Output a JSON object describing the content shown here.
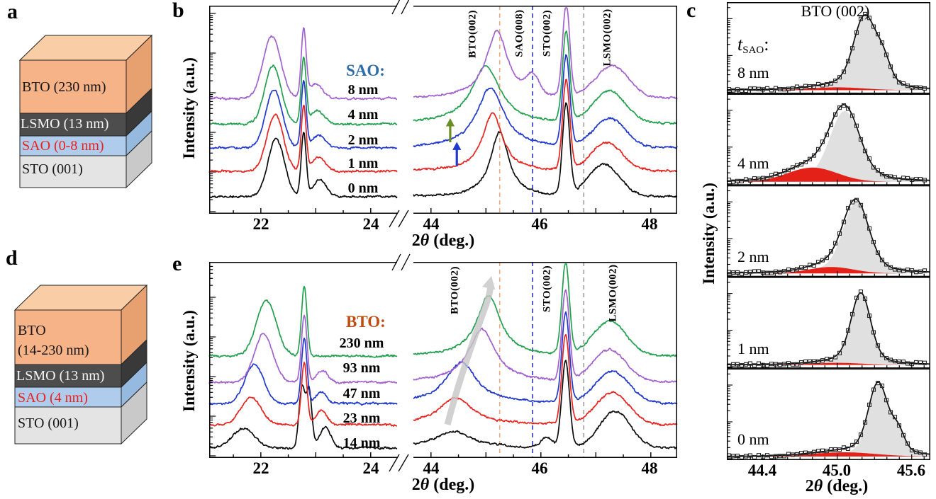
{
  "panel_letters": {
    "a": "a",
    "b": "b",
    "c": "c",
    "d": "d",
    "e": "e"
  },
  "axis": {
    "x_pre": "2",
    "x_theta": "θ",
    "x_post": " (deg.)",
    "y_label": "Intensity (a.u.)"
  },
  "stacks": {
    "a": {
      "layers": [
        {
          "label": "BTO (230 nm)",
          "fill": "#f6b388",
          "side": "#e7a070",
          "top_face": "#f9cda6",
          "text_color": "#161616",
          "h": 75
        },
        {
          "label": "LSMO (13 nm)",
          "fill": "#4d4d4d",
          "side": "#393939",
          "text_color": "#f5f5f5",
          "h": 32
        },
        {
          "label": "SAO (0-8 nm)",
          "fill": "#afccec",
          "side": "#96badf",
          "text_color": "#e8231d",
          "h": 28
        },
        {
          "label": "STO (001)",
          "fill": "#e4e4e4",
          "side": "#c9c9c9",
          "text_color": "#161616",
          "h": 45
        }
      ]
    },
    "d": {
      "layers": [
        {
          "label": "BTO",
          "label2": "(14-230 nm)",
          "fill": "#f6b388",
          "side": "#e7a070",
          "top_face": "#f9cda6",
          "text_color": "#161616",
          "h": 77
        },
        {
          "label": "LSMO (13 nm)",
          "fill": "#4d4d4d",
          "side": "#393939",
          "text_color": "#f5f5f5",
          "h": 32
        },
        {
          "label": "SAO (4 nm)",
          "fill": "#afccec",
          "side": "#96badf",
          "text_color": "#e8231d",
          "h": 28
        },
        {
          "label": "STO (001)",
          "fill": "#e4e4e4",
          "side": "#c9c9c9",
          "text_color": "#161616",
          "h": 52
        }
      ]
    }
  },
  "chart_data": [
    {
      "id": "panel-b",
      "type": "line",
      "xlabel": "2θ (deg.)",
      "ylabel": "Intensity (a.u.)",
      "x_segments": [
        [
          21.06,
          24.48
        ],
        [
          43.68,
          48.48
        ]
      ],
      "xticks": [
        22,
        24,
        44,
        46,
        48
      ],
      "xtick_labels": [
        "22",
        "24",
        "44",
        "46",
        "48"
      ],
      "yscale": "log (arbitrary units, curves vertically offset)",
      "legend": {
        "title": "SAO:",
        "title_color": "#2e6da8",
        "items": [
          "8 nm",
          "4 nm",
          "2 nm",
          "1 nm",
          "0 nm"
        ]
      },
      "guides": [
        {
          "x": 45.25,
          "color": "#e9aa7c"
        },
        {
          "x": 45.85,
          "color": "#2832c8"
        },
        {
          "x": 46.78,
          "color": "#9b9b9b"
        }
      ],
      "peak_annotations": [
        {
          "text": "BTO(002)",
          "x": 44.78
        },
        {
          "text": "SAO(008)",
          "x": 45.62
        },
        {
          "text": "STO(002)",
          "x": 46.12
        },
        {
          "text": "LSMO(002)",
          "x": 47.22
        }
      ],
      "arrows": [
        {
          "x": 44.35,
          "color": "#6b8e23",
          "at_series": "4 nm"
        },
        {
          "x": 44.47,
          "color": "#2038cc",
          "at_series": "2 nm"
        }
      ],
      "series": [
        {
          "label": "0 nm",
          "color": "#0c0c0c",
          "baseline": 270,
          "peaks": [
            {
              "c": 22.28,
              "w": 0.15,
              "a": 82
            },
            {
              "c": 22.78,
              "w": 0.045,
              "a": 90
            },
            {
              "c": 23.07,
              "w": 0.12,
              "a": 24
            },
            {
              "c": 45.25,
              "w": 0.2,
              "a": 92,
              "lor": 1
            },
            {
              "c": 46.46,
              "w": 0.065,
              "a": 128
            },
            {
              "c": 47.15,
              "w": 0.28,
              "a": 45
            }
          ]
        },
        {
          "label": "1 nm",
          "color": "#e62420",
          "baseline": 234,
          "peaks": [
            {
              "c": 22.26,
              "w": 0.15,
              "a": 80
            },
            {
              "c": 22.78,
              "w": 0.045,
              "a": 92
            },
            {
              "c": 23.05,
              "w": 0.12,
              "a": 20
            },
            {
              "c": 45.12,
              "w": 0.22,
              "a": 82,
              "lor": 1
            },
            {
              "c": 46.46,
              "w": 0.065,
              "a": 126
            },
            {
              "c": 47.2,
              "w": 0.28,
              "a": 40
            }
          ]
        },
        {
          "label": "2 nm",
          "color": "#2038cc",
          "baseline": 201,
          "peaks": [
            {
              "c": 22.24,
              "w": 0.15,
              "a": 82
            },
            {
              "c": 22.78,
              "w": 0.045,
              "a": 94
            },
            {
              "c": 23.05,
              "w": 0.12,
              "a": 18
            },
            {
              "c": 45.08,
              "w": 0.3,
              "a": 85,
              "lor": 1
            },
            {
              "c": 46.46,
              "w": 0.065,
              "a": 127
            },
            {
              "c": 47.25,
              "w": 0.29,
              "a": 40
            }
          ]
        },
        {
          "label": "4 nm",
          "color": "#23a04e",
          "baseline": 167,
          "peaks": [
            {
              "c": 22.22,
              "w": 0.15,
              "a": 82
            },
            {
              "c": 22.78,
              "w": 0.045,
              "a": 92
            },
            {
              "c": 23.03,
              "w": 0.12,
              "a": 18
            },
            {
              "c": 45.0,
              "w": 0.32,
              "a": 82,
              "lor": 1
            },
            {
              "c": 46.46,
              "w": 0.065,
              "a": 127
            },
            {
              "c": 47.25,
              "w": 0.29,
              "a": 45
            }
          ]
        },
        {
          "label": "8 nm",
          "color": "#a361cf",
          "baseline": 131,
          "peaks": [
            {
              "c": 22.2,
              "w": 0.16,
              "a": 88
            },
            {
              "c": 22.78,
              "w": 0.045,
              "a": 95
            },
            {
              "c": 23.0,
              "w": 0.12,
              "a": 20
            },
            {
              "c": 45.2,
              "w": 0.24,
              "a": 95,
              "lor": 1
            },
            {
              "c": 45.85,
              "w": 0.11,
              "a": 26
            },
            {
              "c": 46.46,
              "w": 0.065,
              "a": 129
            },
            {
              "c": 47.3,
              "w": 0.3,
              "a": 45
            }
          ]
        }
      ]
    },
    {
      "id": "panel-c",
      "type": "line",
      "title": "BTO (002)",
      "xlabel": "2θ (deg.)",
      "ylabel": "Intensity (a.u.)",
      "xlim": [
        44.11,
        45.75
      ],
      "xticks": [
        44.4,
        45.0,
        45.6
      ],
      "xtick_labels": [
        "44.4",
        "45.0",
        "45.6"
      ],
      "thickness_label": {
        "t": "t",
        "sub": "SAO",
        "colon": ":"
      },
      "fit_fill_color": "#e0e0e0",
      "component_color": "#e32119",
      "marker": "open-square",
      "subpanels": [
        {
          "label": "8 nm",
          "main_peaks": [
            {
              "c": 45.22,
              "w": 0.085,
              "a": 1.0
            },
            {
              "c": 45.37,
              "w": 0.06,
              "a": 0.33
            }
          ],
          "red_peaks": [
            {
              "c": 45.0,
              "w": 0.22,
              "a": 0.04
            }
          ]
        },
        {
          "label": "4 nm",
          "main_peaks": [
            {
              "c": 45.06,
              "w": 0.115,
              "a": 1.0
            }
          ],
          "red_peaks": [
            {
              "c": 44.8,
              "w": 0.2,
              "a": 0.2
            }
          ]
        },
        {
          "label": "2 nm",
          "main_peaks": [
            {
              "c": 45.15,
              "w": 0.1,
              "a": 1.0
            }
          ],
          "red_peaks": [
            {
              "c": 44.95,
              "w": 0.18,
              "a": 0.09
            }
          ]
        },
        {
          "label": "1 nm",
          "main_peaks": [
            {
              "c": 45.19,
              "w": 0.075,
              "a": 1.0
            }
          ],
          "red_peaks": [
            {
              "c": 45.0,
              "w": 0.2,
              "a": 0.03
            }
          ]
        },
        {
          "label": "0 nm",
          "main_peaks": [
            {
              "c": 45.33,
              "w": 0.075,
              "a": 1.0
            },
            {
              "c": 45.49,
              "w": 0.05,
              "a": 0.28
            }
          ],
          "red_peaks": [
            {
              "c": 45.05,
              "w": 0.26,
              "a": 0.06
            }
          ]
        }
      ]
    },
    {
      "id": "panel-e",
      "type": "line",
      "xlabel": "2θ (deg.)",
      "ylabel": "Intensity (a.u.)",
      "x_segments": [
        [
          21.06,
          24.48
        ],
        [
          43.68,
          48.48
        ]
      ],
      "xticks": [
        22,
        24,
        44,
        46,
        48
      ],
      "xtick_labels": [
        "22",
        "24",
        "44",
        "46",
        "48"
      ],
      "legend": {
        "title": "BTO:",
        "title_color": "#bf4d12",
        "items": [
          "230 nm",
          "93 nm",
          "47 nm",
          "23 nm",
          "14 nm"
        ]
      },
      "guides": [
        {
          "x": 45.25,
          "color": "#e9aa7c"
        },
        {
          "x": 45.85,
          "color": "#2832c8"
        },
        {
          "x": 46.78,
          "color": "#9b9b9b"
        }
      ],
      "peak_annotations": [
        {
          "text": "BTO(002)",
          "x": 44.45
        },
        {
          "text": "STO(002)",
          "x": 46.12
        },
        {
          "text": "LSMO(002)",
          "x": 47.32
        }
      ],
      "trend_arrow": {
        "color": "#c6c6c6",
        "from_x": 44.3,
        "to_x": 45.1
      },
      "series": [
        {
          "label": "14 nm",
          "color": "#0c0c0c",
          "baseline": 263,
          "peaks": [
            {
              "c": 21.68,
              "w": 0.2,
              "a": 28
            },
            {
              "c": 22.75,
              "w": 0.055,
              "a": 86
            },
            {
              "c": 22.88,
              "w": 0.05,
              "a": 80
            },
            {
              "c": 23.17,
              "w": 0.1,
              "a": 30
            },
            {
              "c": 44.4,
              "w": 0.42,
              "a": 23,
              "lor": 1
            },
            {
              "c": 46.1,
              "w": 0.1,
              "a": 14
            },
            {
              "c": 46.45,
              "w": 0.07,
              "a": 123
            },
            {
              "c": 47.35,
              "w": 0.28,
              "a": 52
            }
          ]
        },
        {
          "label": "23 nm",
          "color": "#e62420",
          "baseline": 230,
          "peaks": [
            {
              "c": 21.82,
              "w": 0.18,
              "a": 38
            },
            {
              "c": 22.79,
              "w": 0.05,
              "a": 88
            },
            {
              "c": 23.1,
              "w": 0.1,
              "a": 20
            },
            {
              "c": 44.45,
              "w": 0.36,
              "a": 38,
              "lor": 1
            },
            {
              "c": 46.45,
              "w": 0.068,
              "a": 125
            },
            {
              "c": 47.3,
              "w": 0.3,
              "a": 45
            }
          ]
        },
        {
          "label": "47 nm",
          "color": "#2038cc",
          "baseline": 200,
          "peaks": [
            {
              "c": 21.88,
              "w": 0.17,
              "a": 55
            },
            {
              "c": 22.79,
              "w": 0.05,
              "a": 92
            },
            {
              "c": 23.1,
              "w": 0.1,
              "a": 16
            },
            {
              "c": 44.55,
              "w": 0.34,
              "a": 58,
              "lor": 1
            },
            {
              "c": 46.45,
              "w": 0.068,
              "a": 126
            },
            {
              "c": 47.3,
              "w": 0.3,
              "a": 45
            }
          ]
        },
        {
          "label": "93 nm",
          "color": "#a361cf",
          "baseline": 170,
          "peaks": [
            {
              "c": 22.05,
              "w": 0.17,
              "a": 68
            },
            {
              "c": 22.79,
              "w": 0.05,
              "a": 95
            },
            {
              "c": 23.12,
              "w": 0.1,
              "a": 16
            },
            {
              "c": 44.93,
              "w": 0.3,
              "a": 75,
              "lor": 1
            },
            {
              "c": 46.45,
              "w": 0.068,
              "a": 127
            },
            {
              "c": 47.25,
              "w": 0.3,
              "a": 45
            }
          ]
        },
        {
          "label": "230 nm",
          "color": "#23a04e",
          "baseline": 133,
          "peaks": [
            {
              "c": 22.1,
              "w": 0.18,
              "a": 78
            },
            {
              "c": 22.79,
              "w": 0.05,
              "a": 98
            },
            {
              "c": 45.05,
              "w": 0.26,
              "a": 85,
              "lor": 1
            },
            {
              "c": 46.45,
              "w": 0.068,
              "a": 128
            },
            {
              "c": 47.25,
              "w": 0.3,
              "a": 48
            }
          ]
        }
      ]
    }
  ]
}
